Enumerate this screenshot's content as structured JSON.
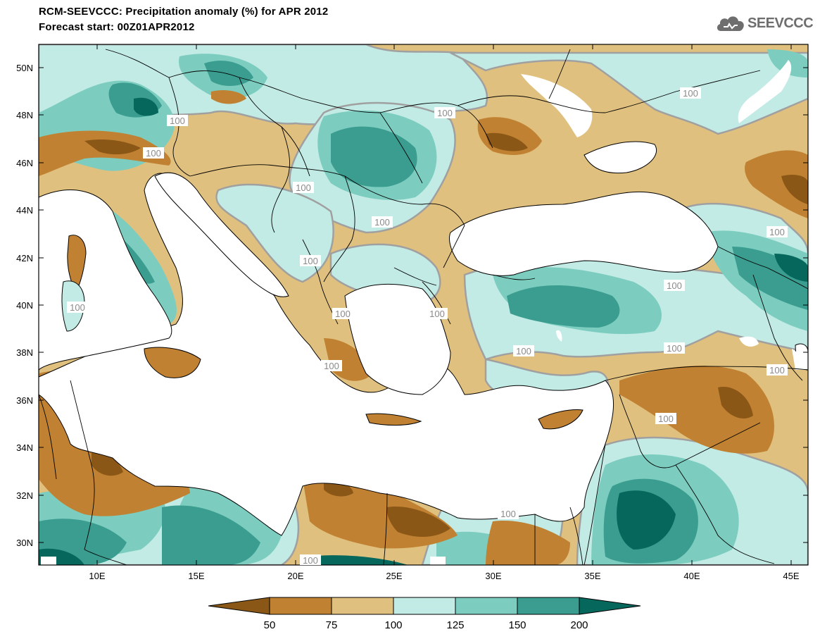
{
  "header": {
    "title": "RCM-SEEVCCC: Precipitation anomaly (%) for APR 2012",
    "subtitle": "Forecast start: 00Z01APR2012"
  },
  "logo": {
    "text": "SEEVCCC",
    "icon": "cloud-logo-icon"
  },
  "map": {
    "lat_ticks": [
      "50N",
      "48N",
      "46N",
      "44N",
      "42N",
      "40N",
      "38N",
      "36N",
      "34N",
      "32N",
      "30N"
    ],
    "lon_ticks": [
      "10E",
      "15E",
      "20E",
      "25E",
      "30E",
      "35E",
      "40E",
      "45E"
    ],
    "contour_label": "100",
    "colors": {
      "sea": "#ffffff",
      "border": "#000000",
      "contour_line": "#a0a0a0"
    }
  },
  "legend": {
    "labels": [
      "50",
      "75",
      "100",
      "125",
      "150",
      "200"
    ],
    "colors": [
      "#8b5716",
      "#c08232",
      "#e0c07e",
      "#c2ebe5",
      "#7ccdbf",
      "#3a9d90",
      "#06675c"
    ]
  }
}
